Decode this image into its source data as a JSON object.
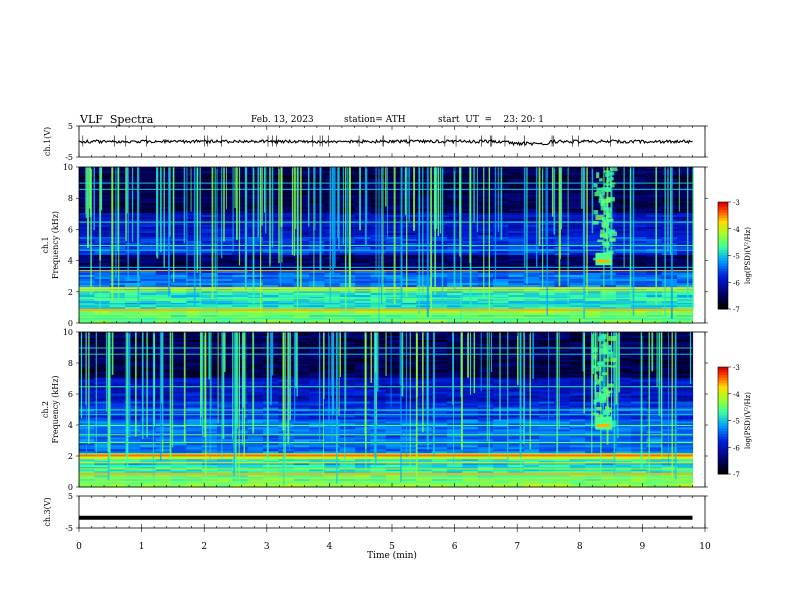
{
  "header": {
    "title": "VLF  Spectra",
    "date": "Feb. 13, 2023",
    "station": "station= ATH",
    "start_ut": "start  UT  =    23: 20: 1"
  },
  "chart_data": [
    {
      "type": "line",
      "panel": "ch1-waveform",
      "ylabel": "ch.1(V)",
      "ylim": [
        -5,
        5
      ],
      "yticks": [
        "5",
        "-5"
      ],
      "xlim": [
        0,
        10
      ],
      "series": [
        {
          "x": [
            0,
            9.8
          ],
          "values": [
            0,
            0
          ]
        }
      ]
    },
    {
      "type": "heatmap",
      "panel": "ch1-spectrogram",
      "ylabel": "ch.1\nFrequency  (kHz)",
      "ylim": [
        0,
        10
      ],
      "yticks": [
        "0",
        "2",
        "4",
        "6",
        "8",
        "10"
      ],
      "xlim": [
        0,
        10
      ],
      "colorbar": {
        "label": "log(PSD)(V²/Hz)",
        "ticks": [
          "-3",
          "-4",
          "-5",
          "-6",
          "-7"
        ],
        "range": [
          -7,
          -3
        ]
      },
      "features": {
        "burst_time_min": [
          8.2,
          8.55
        ],
        "burst_freq_khz": [
          3.5,
          4.5
        ]
      }
    },
    {
      "type": "heatmap",
      "panel": "ch2-spectrogram",
      "ylabel": "ch.2\nFrequency  (kHz)",
      "ylim": [
        0,
        10
      ],
      "yticks": [
        "0",
        "2",
        "4",
        "6",
        "8",
        "10"
      ],
      "xlim": [
        0,
        10
      ],
      "colorbar": {
        "label": "log(PSD)(V²/Hz)",
        "ticks": [
          "-3",
          "-4",
          "-5",
          "-6",
          "-7"
        ],
        "range": [
          -7,
          -3
        ]
      },
      "features": {
        "burst_time_min": [
          8.2,
          8.55
        ],
        "burst_freq_khz": [
          3.5,
          4.5
        ]
      }
    },
    {
      "type": "line",
      "panel": "ch3-waveform",
      "ylabel": "ch.3(V)",
      "ylim": [
        -5,
        5
      ],
      "yticks": [
        "5",
        "-5"
      ],
      "xlim": [
        0,
        10
      ],
      "xlabel": "Time  (min)",
      "xticks": [
        "0",
        "1",
        "2",
        "3",
        "4",
        "5",
        "6",
        "7",
        "8",
        "9",
        "10"
      ],
      "series": [
        {
          "x": [
            0,
            9.8
          ],
          "values": [
            -1.8,
            -1.8
          ]
        }
      ]
    }
  ]
}
